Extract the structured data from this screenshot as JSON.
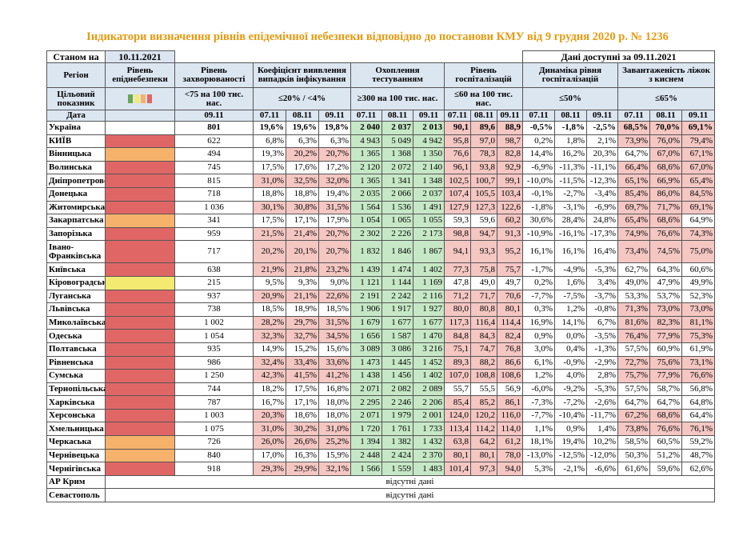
{
  "header": {
    "title": "Індикатори визначення рівнів епідемічної небезпеки відповідно до постанови КМУ від 9 грудня 2020 р. № 1236",
    "as_of_label": "Станом на",
    "as_of": "10.11.2021",
    "data_available": "Дані доступні за 09.11.2021"
  },
  "table": {
    "columns": [
      "Регіон",
      "Рівень епіднебезпеки",
      "Рівень захворюваності",
      "Коефіцієнт виявлення випадків інфікування",
      "Охоплення тестуванням",
      "Рівень госпіталізацій",
      "Динаміка рівня госпіталізацій",
      "Завантаженість ліжок з киснем"
    ],
    "target_label": "Цільовий показник",
    "targets": [
      "<75 на 100 тис. нас.",
      "≤20% / <4%",
      "≥300 на 100 тис. нас.",
      "≤60 на 100 тис. нас.",
      "≤50%",
      "≤65%"
    ],
    "date_label": "Дата",
    "rate_date": "09.11",
    "dates": [
      "07.11",
      "08.11",
      "09.11"
    ],
    "colors": {
      "header": "#dce6f1",
      "alert": "#f4c7c3",
      "testing": "#c6e8c6"
    },
    "highlight_above": {
      "coef": 20,
      "hosp": 60,
      "dyn": 50,
      "beds": 65
    },
    "rows": [
      {
        "region": "Україна",
        "rate": "801",
        "coef": [
          "19,6%",
          "19,6%",
          "19,8%"
        ],
        "tests": [
          "2 040",
          "2 037",
          "2 013"
        ],
        "hosp": [
          "90,1",
          "89,6",
          "88,9"
        ],
        "dyn": [
          "-0,5%",
          "-1,8%",
          "-2,5%"
        ],
        "beds": [
          "68,5%",
          "70,0%",
          "69,1%"
        ]
      },
      {
        "region": "КИЇВ",
        "level_color": "#e06666",
        "rate": "622",
        "coef": [
          "6,8%",
          "6,3%",
          "6,3%"
        ],
        "tests": [
          "4 943",
          "5 049",
          "4 942"
        ],
        "hosp": [
          "95,8",
          "97,0",
          "98,7"
        ],
        "dyn": [
          "0,2%",
          "1,8%",
          "2,1%"
        ],
        "beds": [
          "73,9%",
          "76,0%",
          "79,4%"
        ]
      },
      {
        "region": "Вінницька",
        "level_color": "#f6b26b",
        "rate": "494",
        "coef": [
          "19,3%",
          "20,2%",
          "20,7%"
        ],
        "tests": [
          "1 365",
          "1 368",
          "1 350"
        ],
        "hosp": [
          "76,6",
          "78,3",
          "82,8"
        ],
        "dyn": [
          "14,4%",
          "16,2%",
          "20,3%"
        ],
        "beds": [
          "64,7%",
          "67,0%",
          "67,1%"
        ]
      },
      {
        "region": "Волинська",
        "level_color": "#e06666",
        "rate": "745",
        "coef": [
          "17,5%",
          "17,6%",
          "17,2%"
        ],
        "tests": [
          "2 120",
          "2 072",
          "2 140"
        ],
        "hosp": [
          "96,1",
          "93,8",
          "92,9"
        ],
        "dyn": [
          "-6,9%",
          "-11,3%",
          "-11,1%"
        ],
        "beds": [
          "66,4%",
          "68,6%",
          "67,0%"
        ]
      },
      {
        "region": "Дніпропетровська",
        "level_color": "#e06666",
        "rate": "815",
        "coef": [
          "31,0%",
          "32,5%",
          "32,0%"
        ],
        "tests": [
          "1 365",
          "1 341",
          "1 348"
        ],
        "hosp": [
          "102,5",
          "100,7",
          "99,1"
        ],
        "dyn": [
          "-10,0%",
          "-11,5%",
          "-12,3%"
        ],
        "beds": [
          "65,1%",
          "66,9%",
          "65,4%"
        ]
      },
      {
        "region": "Донецька",
        "level_color": "#e06666",
        "rate": "718",
        "coef": [
          "18,8%",
          "18,8%",
          "19,4%"
        ],
        "tests": [
          "2 035",
          "2 066",
          "2 037"
        ],
        "hosp": [
          "107,4",
          "105,5",
          "103,4"
        ],
        "dyn": [
          "-0,1%",
          "-2,7%",
          "-3,4%"
        ],
        "beds": [
          "85,4%",
          "86,0%",
          "84,5%"
        ]
      },
      {
        "region": "Житомирська",
        "level_color": "#e06666",
        "rate": "1 036",
        "coef": [
          "30,1%",
          "30,8%",
          "31,5%"
        ],
        "tests": [
          "1 564",
          "1 536",
          "1 491"
        ],
        "hosp": [
          "127,9",
          "127,3",
          "122,6"
        ],
        "dyn": [
          "-1,8%",
          "-3,1%",
          "-6,9%"
        ],
        "beds": [
          "69,7%",
          "71,7%",
          "69,1%"
        ]
      },
      {
        "region": "Закарпатська",
        "level_color": "#f6b26b",
        "rate": "341",
        "coef": [
          "17,5%",
          "17,1%",
          "17,9%"
        ],
        "tests": [
          "1 054",
          "1 065",
          "1 055"
        ],
        "hosp": [
          "59,3",
          "59,6",
          "60,2"
        ],
        "dyn": [
          "30,6%",
          "28,4%",
          "24,8%"
        ],
        "beds": [
          "65,4%",
          "68,6%",
          "64,9%"
        ]
      },
      {
        "region": "Запорізька",
        "level_color": "#e06666",
        "rate": "959",
        "coef": [
          "21,5%",
          "21,4%",
          "20,7%"
        ],
        "tests": [
          "2 302",
          "2 226",
          "2 173"
        ],
        "hosp": [
          "98,8",
          "94,7",
          "91,3"
        ],
        "dyn": [
          "-10,9%",
          "-16,1%",
          "-17,3%"
        ],
        "beds": [
          "74,9%",
          "76,6%",
          "74,3%"
        ]
      },
      {
        "region": "Івано-Франківська",
        "level_color": "#e06666",
        "rate": "717",
        "coef": [
          "20,2%",
          "20,1%",
          "20,7%"
        ],
        "tests": [
          "1 832",
          "1 846",
          "1 867"
        ],
        "hosp": [
          "94,1",
          "93,3",
          "95,2"
        ],
        "dyn": [
          "16,1%",
          "16,1%",
          "16,4%"
        ],
        "beds": [
          "73,4%",
          "74,5%",
          "75,0%"
        ]
      },
      {
        "region": "Київська",
        "level_color": "#e06666",
        "rate": "638",
        "coef": [
          "21,9%",
          "21,8%",
          "23,2%"
        ],
        "tests": [
          "1 439",
          "1 474",
          "1 402"
        ],
        "hosp": [
          "77,3",
          "75,8",
          "75,7"
        ],
        "dyn": [
          "-1,7%",
          "-4,9%",
          "-5,3%"
        ],
        "beds": [
          "62,7%",
          "64,3%",
          "60,6%"
        ]
      },
      {
        "region": "Кіровоградська",
        "level_color": "#f3ea72",
        "rate": "215",
        "coef": [
          "9,5%",
          "9,3%",
          "9,0%"
        ],
        "tests": [
          "1 121",
          "1 144",
          "1 169"
        ],
        "hosp": [
          "47,8",
          "49,0",
          "49,7"
        ],
        "dyn": [
          "0,2%",
          "1,6%",
          "3,4%"
        ],
        "beds": [
          "49,0%",
          "47,9%",
          "49,9%"
        ]
      },
      {
        "region": "Луганська",
        "level_color": "#e06666",
        "rate": "937",
        "coef": [
          "20,9%",
          "21,1%",
          "22,6%"
        ],
        "tests": [
          "2 191",
          "2 242",
          "2 116"
        ],
        "hosp": [
          "71,2",
          "71,7",
          "70,6"
        ],
        "dyn": [
          "-7,7%",
          "-7,5%",
          "-3,7%"
        ],
        "beds": [
          "53,3%",
          "53,7%",
          "52,3%"
        ]
      },
      {
        "region": "Львівська",
        "level_color": "#e06666",
        "rate": "738",
        "coef": [
          "18,5%",
          "18,9%",
          "18,5%"
        ],
        "tests": [
          "1 906",
          "1 917",
          "1 927"
        ],
        "hosp": [
          "80,0",
          "80,8",
          "80,1"
        ],
        "dyn": [
          "0,3%",
          "1,2%",
          "-0,8%"
        ],
        "beds": [
          "71,3%",
          "73,0%",
          "73,0%"
        ]
      },
      {
        "region": "Миколаївська",
        "level_color": "#e06666",
        "rate": "1 002",
        "coef": [
          "28,2%",
          "29,7%",
          "31,5%"
        ],
        "tests": [
          "1 679",
          "1 677",
          "1 677"
        ],
        "hosp": [
          "117,3",
          "116,4",
          "114,4"
        ],
        "dyn": [
          "16,9%",
          "14,1%",
          "6,7%"
        ],
        "beds": [
          "81,6%",
          "82,3%",
          "81,1%"
        ]
      },
      {
        "region": "Одеська",
        "level_color": "#e06666",
        "rate": "1 054",
        "coef": [
          "32,3%",
          "32,7%",
          "34,5%"
        ],
        "tests": [
          "1 656",
          "1 587",
          "1 470"
        ],
        "hosp": [
          "84,8",
          "84,3",
          "82,4"
        ],
        "dyn": [
          "0,9%",
          "0,0%",
          "-3,5%"
        ],
        "beds": [
          "76,4%",
          "77,9%",
          "75,3%"
        ]
      },
      {
        "region": "Полтавська",
        "level_color": "#e06666",
        "rate": "935",
        "coef": [
          "14,9%",
          "15,2%",
          "15,6%"
        ],
        "tests": [
          "3 089",
          "3 086",
          "3 216"
        ],
        "hosp": [
          "75,1",
          "74,7",
          "76,8"
        ],
        "dyn": [
          "3,0%",
          "0,4%",
          "-1,3%"
        ],
        "beds": [
          "57,5%",
          "60,9%",
          "61,9%"
        ]
      },
      {
        "region": "Рівненська",
        "level_color": "#e06666",
        "rate": "986",
        "coef": [
          "32,4%",
          "33,4%",
          "33,6%"
        ],
        "tests": [
          "1 473",
          "1 445",
          "1 452"
        ],
        "hosp": [
          "89,3",
          "88,2",
          "86,6"
        ],
        "dyn": [
          "6,1%",
          "-0,9%",
          "-2,9%"
        ],
        "beds": [
          "72,7%",
          "75,6%",
          "73,1%"
        ]
      },
      {
        "region": "Сумська",
        "level_color": "#e06666",
        "rate": "1 250",
        "coef": [
          "42,3%",
          "41,5%",
          "41,2%"
        ],
        "tests": [
          "1 438",
          "1 456",
          "1 402"
        ],
        "hosp": [
          "107,0",
          "108,8",
          "108,6"
        ],
        "dyn": [
          "1,2%",
          "4,0%",
          "2,8%"
        ],
        "beds": [
          "75,7%",
          "77,9%",
          "76,6%"
        ]
      },
      {
        "region": "Тернопільська",
        "level_color": "#e06666",
        "rate": "744",
        "coef": [
          "18,2%",
          "17,5%",
          "16,8%"
        ],
        "tests": [
          "2 071",
          "2 082",
          "2 089"
        ],
        "hosp": [
          "55,7",
          "55,5",
          "56,9"
        ],
        "dyn": [
          "-6,0%",
          "-9,2%",
          "-5,3%"
        ],
        "beds": [
          "57,5%",
          "58,7%",
          "56,8%"
        ]
      },
      {
        "region": "Харківська",
        "level_color": "#e06666",
        "rate": "787",
        "coef": [
          "16,7%",
          "17,1%",
          "18,0%"
        ],
        "tests": [
          "2 295",
          "2 246",
          "2 206"
        ],
        "hosp": [
          "85,4",
          "85,2",
          "86,1"
        ],
        "dyn": [
          "-7,3%",
          "-7,2%",
          "-2,6%"
        ],
        "beds": [
          "64,7%",
          "64,7%",
          "64,8%"
        ]
      },
      {
        "region": "Херсонська",
        "level_color": "#e06666",
        "rate": "1 003",
        "coef": [
          "20,3%",
          "18,6%",
          "18,0%"
        ],
        "tests": [
          "2 071",
          "1 979",
          "2 001"
        ],
        "hosp": [
          "124,0",
          "120,2",
          "116,0"
        ],
        "dyn": [
          "-7,7%",
          "-10,4%",
          "-11,7%"
        ],
        "beds": [
          "67,2%",
          "68,6%",
          "64,4%"
        ]
      },
      {
        "region": "Хмельницька",
        "level_color": "#e06666",
        "rate": "1 075",
        "coef": [
          "31,0%",
          "30,2%",
          "31,0%"
        ],
        "tests": [
          "1 720",
          "1 761",
          "1 733"
        ],
        "hosp": [
          "113,4",
          "114,2",
          "114,0"
        ],
        "dyn": [
          "1,1%",
          "0,9%",
          "1,4%"
        ],
        "beds": [
          "73,8%",
          "76,6%",
          "76,1%"
        ]
      },
      {
        "region": "Черкаська",
        "level_color": "#f6b26b",
        "rate": "726",
        "coef": [
          "26,0%",
          "26,6%",
          "25,2%"
        ],
        "tests": [
          "1 394",
          "1 382",
          "1 432"
        ],
        "hosp": [
          "63,8",
          "64,2",
          "61,2"
        ],
        "dyn": [
          "18,1%",
          "19,4%",
          "10,2%"
        ],
        "beds": [
          "58,5%",
          "60,5%",
          "59,2%"
        ]
      },
      {
        "region": "Чернівецька",
        "level_color": "#f6b26b",
        "rate": "840",
        "coef": [
          "17,0%",
          "16,3%",
          "15,9%"
        ],
        "tests": [
          "2 448",
          "2 424",
          "2 370"
        ],
        "hosp": [
          "80,1",
          "80,1",
          "78,0"
        ],
        "dyn": [
          "-13,0%",
          "-12,5%",
          "-12,0%"
        ],
        "beds": [
          "50,3%",
          "51,2%",
          "48,7%"
        ]
      },
      {
        "region": "Чернігівська",
        "level_color": "#e06666",
        "rate": "918",
        "coef": [
          "29,3%",
          "29,9%",
          "32,1%"
        ],
        "tests": [
          "1 566",
          "1 559",
          "1 483"
        ],
        "hosp": [
          "101,4",
          "97,3",
          "94,0"
        ],
        "dyn": [
          "5,3%",
          "-2,1%",
          "-6,6%"
        ],
        "beds": [
          "61,6%",
          "59,6%",
          "62,6%"
        ]
      }
    ],
    "missing": [
      {
        "region": "АР Крим",
        "note": "відсутні дані"
      },
      {
        "region": "Севастополь",
        "note": "відсутні дані"
      }
    ]
  }
}
